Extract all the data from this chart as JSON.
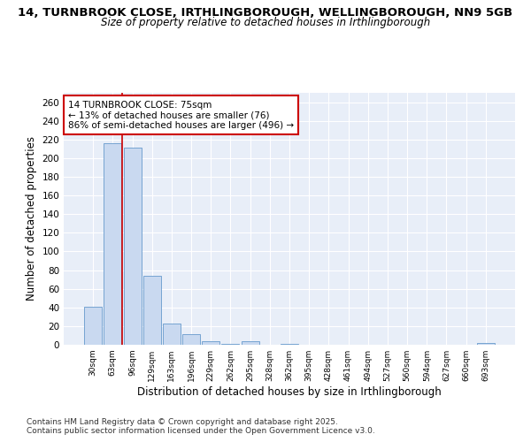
{
  "title_line1": "14, TURNBROOK CLOSE, IRTHLINGBOROUGH, WELLINGBOROUGH, NN9 5GB",
  "title_line2": "Size of property relative to detached houses in Irthlingborough",
  "xlabel": "Distribution of detached houses by size in Irthlingborough",
  "ylabel": "Number of detached properties",
  "bar_color": "#c9d9f0",
  "bar_edge_color": "#6699cc",
  "categories": [
    "30sqm",
    "63sqm",
    "96sqm",
    "129sqm",
    "163sqm",
    "196sqm",
    "229sqm",
    "262sqm",
    "295sqm",
    "328sqm",
    "362sqm",
    "395sqm",
    "428sqm",
    "461sqm",
    "494sqm",
    "527sqm",
    "560sqm",
    "594sqm",
    "627sqm",
    "660sqm",
    "693sqm"
  ],
  "values": [
    41,
    216,
    211,
    74,
    23,
    11,
    4,
    1,
    4,
    0,
    1,
    0,
    0,
    0,
    0,
    0,
    0,
    0,
    0,
    0,
    2
  ],
  "vline_x": 1.5,
  "vline_color": "#cc0000",
  "annotation_text": "14 TURNBROOK CLOSE: 75sqm\n← 13% of detached houses are smaller (76)\n86% of semi-detached houses are larger (496) →",
  "annotation_box_color": "#ffffff",
  "annotation_box_edge_color": "#cc0000",
  "ylim": [
    0,
    270
  ],
  "yticks": [
    0,
    20,
    40,
    60,
    80,
    100,
    120,
    140,
    160,
    180,
    200,
    220,
    240,
    260
  ],
  "background_color": "#e8eef8",
  "footer_line1": "Contains HM Land Registry data © Crown copyright and database right 2025.",
  "footer_line2": "Contains public sector information licensed under the Open Government Licence v3.0.",
  "grid_color": "#ffffff"
}
